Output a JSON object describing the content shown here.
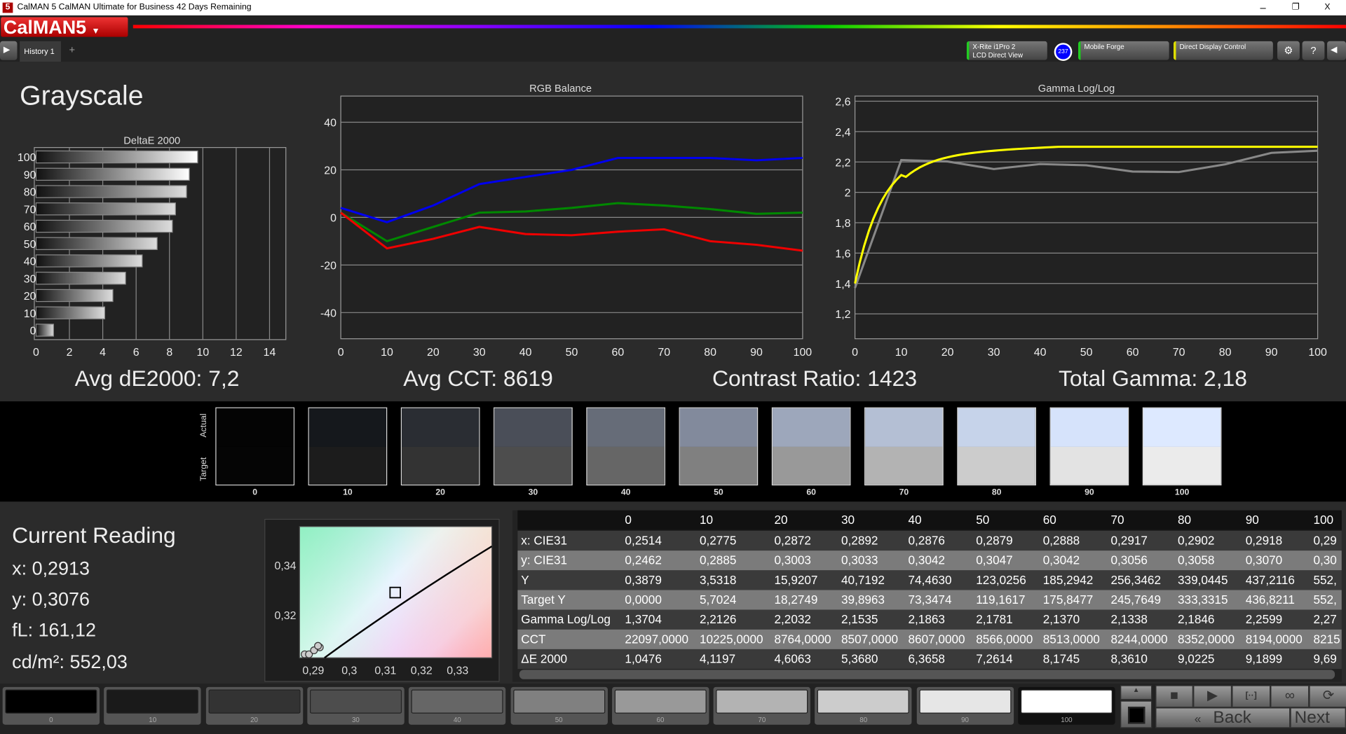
{
  "window": {
    "title": "CalMAN 5 CalMAN Ultimate for Business 42 Days Remaining",
    "minimize": "–",
    "restore": "❐",
    "close": "X"
  },
  "logo": {
    "text": "CalMAN5"
  },
  "tabs": [
    {
      "label": "History 1"
    }
  ],
  "toolbar": {
    "meter": {
      "line1": "X-Rite i1Pro 2",
      "line2": "LCD Direct View",
      "badge": "237",
      "color": "#22cc22"
    },
    "source": {
      "label": "Mobile Forge",
      "color": "#22cc22"
    },
    "display": {
      "label": "Direct Display Control",
      "color": "#dddd00"
    }
  },
  "page": {
    "title": "Grayscale"
  },
  "summary": {
    "avg_de": "Avg dE2000: 7,2",
    "avg_cct": "Avg CCT: 8619",
    "contrast": "Contrast Ratio: 1423",
    "gamma": "Total Gamma: 2,18"
  },
  "chart_data": [
    {
      "type": "bar",
      "title": "DeltaE 2000",
      "orientation": "horizontal",
      "categories": [
        "0",
        "10",
        "20",
        "30",
        "40",
        "50",
        "60",
        "70",
        "80",
        "90",
        "100"
      ],
      "values": [
        1.0476,
        4.1197,
        4.6063,
        5.368,
        6.3658,
        7.2614,
        8.1745,
        8.361,
        9.0225,
        9.1899,
        9.69
      ],
      "xlim": [
        0,
        15
      ],
      "xticks": [
        "0",
        "2",
        "4",
        "6",
        "8",
        "10",
        "12",
        "14"
      ],
      "grid": true
    },
    {
      "type": "line",
      "title": "RGB Balance",
      "x": [
        0,
        10,
        20,
        30,
        40,
        50,
        60,
        70,
        80,
        90,
        100
      ],
      "ylim": [
        -51,
        51
      ],
      "yticks": [
        "40",
        "20",
        "0",
        "-20",
        "-40"
      ],
      "xticks": [
        "0",
        "10",
        "20",
        "30",
        "40",
        "50",
        "60",
        "70",
        "80",
        "90",
        "100"
      ],
      "grid": true,
      "series": [
        {
          "color": "#0000ee",
          "values": [
            4,
            -2,
            5,
            14,
            17,
            20,
            25,
            25,
            25,
            24,
            25
          ]
        },
        {
          "color": "#008800",
          "values": [
            2,
            -10,
            -4,
            2,
            2.5,
            4,
            6,
            5,
            3.5,
            1.5,
            2
          ]
        },
        {
          "color": "#ee0000",
          "values": [
            2,
            -13,
            -9,
            -4,
            -7,
            -7.5,
            -6,
            -5,
            -10,
            -11.5,
            -14
          ]
        }
      ]
    },
    {
      "type": "line",
      "title": "Gamma Log/Log",
      "x": [
        0,
        10,
        20,
        30,
        40,
        50,
        60,
        70,
        80,
        90,
        100
      ],
      "ylim": [
        1.036,
        2.634
      ],
      "yticks": [
        "2,6",
        "2,4",
        "2,2",
        "2",
        "1,8",
        "1,6",
        "1,4",
        "1,2"
      ],
      "xticks": [
        "0",
        "10",
        "20",
        "30",
        "40",
        "50",
        "60",
        "70",
        "80",
        "90",
        "100"
      ],
      "grid": true,
      "series": [
        {
          "color": "#888888",
          "values": [
            1.3704,
            2.2126,
            2.2032,
            2.1535,
            2.1863,
            2.1781,
            2.137,
            2.1338,
            2.1846,
            2.2599,
            2.274
          ]
        },
        {
          "color": "#ffff00",
          "values": [
            1.4,
            2.02,
            2.13,
            2.18,
            2.21,
            2.23,
            2.245,
            2.255,
            2.265,
            2.272,
            2.28
          ]
        }
      ]
    },
    {
      "type": "scatter",
      "title": "",
      "xlim": [
        0.2862,
        0.3395
      ],
      "ylim": [
        0.3028,
        0.3555
      ],
      "xticks": [
        "0,29",
        "0,3",
        "0,31",
        "0,32",
        "0,33"
      ],
      "yticks": [
        "0,34",
        "0,32"
      ],
      "target": {
        "x": 0.3127,
        "y": 0.329
      },
      "points": [
        {
          "x": 0.2876,
          "y": 0.3042
        },
        {
          "x": 0.2888,
          "y": 0.3042
        },
        {
          "x": 0.2902,
          "y": 0.3058
        },
        {
          "x": 0.2918,
          "y": 0.307
        },
        {
          "x": 0.2913,
          "y": 0.3076
        }
      ]
    }
  ],
  "swatches": {
    "actual_label": "Actual",
    "target_label": "Target",
    "items": [
      {
        "label": "0",
        "actual": "#040404",
        "target": "#050505"
      },
      {
        "label": "10",
        "actual": "#15181c",
        "target": "#1c1c1c"
      },
      {
        "label": "20",
        "actual": "#2a2d33",
        "target": "#333333"
      },
      {
        "label": "30",
        "actual": "#4a4e58",
        "target": "#4d4d4d"
      },
      {
        "label": "40",
        "actual": "#666c78",
        "target": "#666666"
      },
      {
        "label": "50",
        "actual": "#828a9c",
        "target": "#808080"
      },
      {
        "label": "60",
        "actual": "#9da7bb",
        "target": "#999999"
      },
      {
        "label": "70",
        "actual": "#b4bfd4",
        "target": "#b3b3b3"
      },
      {
        "label": "80",
        "actual": "#c6d3ea",
        "target": "#cccccc"
      },
      {
        "label": "90",
        "actual": "#d6e3fb",
        "target": "#e3e3e3"
      },
      {
        "label": "100",
        "actual": "#dde9ff",
        "target": "#ebebeb"
      }
    ]
  },
  "reading": {
    "title": "Current Reading",
    "x": "x: 0,2913",
    "y": "y: 0,3076",
    "fl": "fL: 161,12",
    "cdm2": "cd/m²: 552,03"
  },
  "table": {
    "headers": [
      "",
      "0",
      "10",
      "20",
      "30",
      "40",
      "50",
      "60",
      "70",
      "80",
      "90",
      "100"
    ],
    "rows": [
      [
        "x: CIE31",
        "0,2514",
        "0,2775",
        "0,2872",
        "0,2892",
        "0,2876",
        "0,2879",
        "0,2888",
        "0,2917",
        "0,2902",
        "0,2918",
        "0,29"
      ],
      [
        "y: CIE31",
        "0,2462",
        "0,2885",
        "0,3003",
        "0,3033",
        "0,3042",
        "0,3047",
        "0,3042",
        "0,3056",
        "0,3058",
        "0,3070",
        "0,30"
      ],
      [
        "Y",
        "0,3879",
        "3,5318",
        "15,9207",
        "40,7192",
        "74,4630",
        "123,0256",
        "185,2942",
        "256,3462",
        "339,0445",
        "437,2116",
        "552,"
      ],
      [
        "Target Y",
        "0,0000",
        "5,7024",
        "18,2749",
        "39,8963",
        "73,3474",
        "119,1617",
        "175,8477",
        "245,7649",
        "333,3315",
        "436,8211",
        "552,"
      ],
      [
        "Gamma Log/Log",
        "1,3704",
        "2,2126",
        "2,2032",
        "2,1535",
        "2,1863",
        "2,1781",
        "2,1370",
        "2,1338",
        "2,1846",
        "2,2599",
        "2,27"
      ],
      [
        "CCT",
        "22097,0000",
        "10225,0000",
        "8764,0000",
        "8507,0000",
        "8607,0000",
        "8566,0000",
        "8513,0000",
        "8244,0000",
        "8352,0000",
        "8194,0000",
        "8215"
      ],
      [
        "ΔE 2000",
        "1,0476",
        "4,1197",
        "4,6063",
        "5,3680",
        "6,3658",
        "7,2614",
        "8,1745",
        "8,3610",
        "9,0225",
        "9,1899",
        "9,69"
      ]
    ]
  },
  "bottom": {
    "swatches": [
      {
        "label": "0",
        "color": "#000000"
      },
      {
        "label": "10",
        "color": "#1a1a1a"
      },
      {
        "label": "20",
        "color": "#333333"
      },
      {
        "label": "30",
        "color": "#4d4d4d"
      },
      {
        "label": "40",
        "color": "#666666"
      },
      {
        "label": "50",
        "color": "#808080"
      },
      {
        "label": "60",
        "color": "#999999"
      },
      {
        "label": "70",
        "color": "#b3b3b3"
      },
      {
        "label": "80",
        "color": "#cccccc"
      },
      {
        "label": "90",
        "color": "#e6e6e6"
      },
      {
        "label": "100",
        "color": "#ffffff"
      }
    ],
    "back": "Back",
    "next": "Next"
  }
}
